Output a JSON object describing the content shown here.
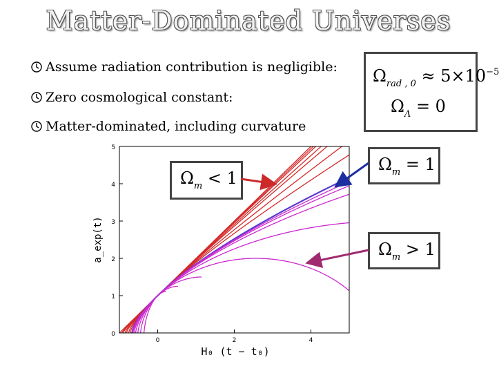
{
  "title": "Matter-Dominated Universes",
  "bullets": [
    "Assume radiation contribution is negligible:",
    "Zero cosmological constant:",
    "Matter-dominated, including curvature"
  ],
  "assumptions_box": {
    "line1": {
      "symbol": "Ω",
      "subscript": "rad , 0",
      "relation": "≈ 5×10",
      "exponent": "−5"
    },
    "line2": {
      "symbol": "Ω",
      "subscript": "Λ",
      "relation": "= 0"
    }
  },
  "labels": {
    "omega_lt": {
      "symbol": "Ω",
      "subscript": "m",
      "relation": "< 1"
    },
    "omega_eq": {
      "symbol": "Ω",
      "subscript": "m",
      "relation": "= 1"
    },
    "omega_gt": {
      "symbol": "Ω",
      "subscript": "m",
      "relation": "> 1"
    }
  },
  "arrow_colors": {
    "omega_lt": "#cc2a2a",
    "omega_eq": "#1c2ea0",
    "omega_gt": "#a02a70"
  },
  "chart_data": {
    "type": "line",
    "xlabel": "H₀ (t − t₀)",
    "ylabel": "a_exp(t)",
    "x_ticks": [
      "0",
      "2",
      "4"
    ],
    "y_ticks": [
      "0",
      "1",
      "2",
      "3",
      "4",
      "5"
    ],
    "xlim": [
      -1,
      5
    ],
    "ylim": [
      0,
      5
    ],
    "series_colors": {
      "open": "#d42a2a",
      "flat": "#5a3ad0",
      "closed": "#cc2ad0"
    },
    "series": [
      {
        "group": "open",
        "omega_m": 0.0
      },
      {
        "group": "open",
        "omega_m": 0.05
      },
      {
        "group": "open",
        "omega_m": 0.1
      },
      {
        "group": "open",
        "omega_m": 0.2
      },
      {
        "group": "open",
        "omega_m": 0.3
      },
      {
        "group": "open",
        "omega_m": 0.5
      },
      {
        "group": "open",
        "omega_m": 0.7
      },
      {
        "group": "flat",
        "omega_m": 1.0
      },
      {
        "group": "closed",
        "omega_m": 1.05
      },
      {
        "group": "closed",
        "omega_m": 1.1
      },
      {
        "group": "closed",
        "omega_m": 1.2
      },
      {
        "group": "closed",
        "omega_m": 1.5
      },
      {
        "group": "closed",
        "omega_m": 2.0
      },
      {
        "group": "closed",
        "omega_m": 3.0
      },
      {
        "group": "closed",
        "omega_m": 5.0
      },
      {
        "group": "closed",
        "omega_m": 10.0
      }
    ]
  }
}
